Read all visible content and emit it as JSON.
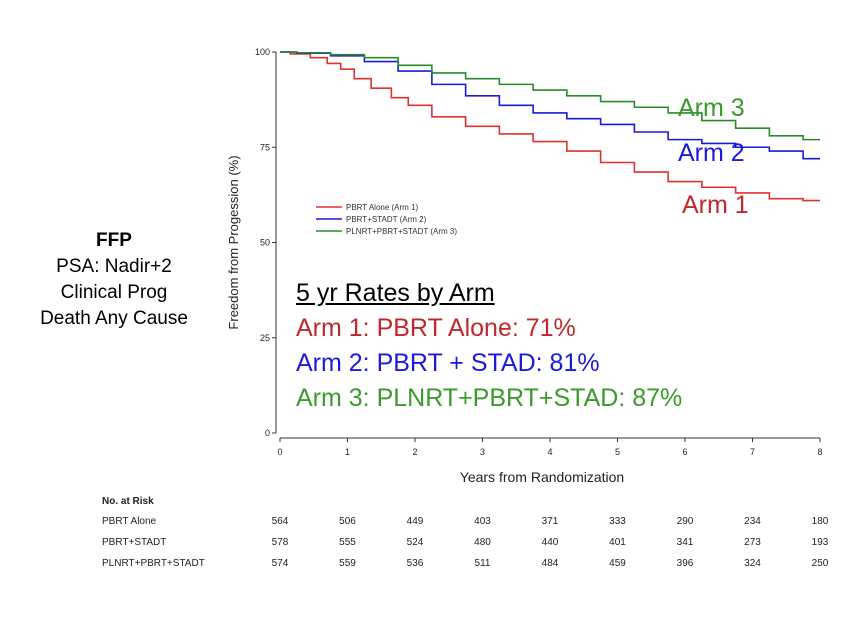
{
  "side_label": {
    "heading": "FFP",
    "lines": [
      "PSA: Nadir+2",
      "Clinical Prog",
      "Death Any Cause"
    ]
  },
  "rates": {
    "header": "5 yr Rates by Arm",
    "arm1": "Arm 1: PBRT Alone: 71%",
    "arm2": "Arm 2: PBRT + STAD: 81%",
    "arm3": "Arm 3: PLNRT+PBRT+STAD: 87%"
  },
  "arm_labels": {
    "arm1": "Arm 1",
    "arm2": "Arm 2",
    "arm3": "Arm 3"
  },
  "colors": {
    "arm1": "#c0282d",
    "arm2": "#1a1adb",
    "arm3": "#3a9a2a"
  },
  "chart_data": {
    "type": "line",
    "xlabel": "Years from Randomization",
    "ylabel": "Freedom from Progession (%)",
    "xlim": [
      0,
      8
    ],
    "ylim": [
      0,
      100
    ],
    "xticks": [
      0,
      1,
      2,
      3,
      4,
      5,
      6,
      7,
      8
    ],
    "yticks": [
      0,
      25,
      50,
      75,
      100
    ],
    "legend_position": "middle-left",
    "series": [
      {
        "name": "PBRT Alone (Arm 1)",
        "color": "#e03030",
        "x": [
          0,
          0.3,
          0.6,
          0.8,
          1.0,
          1.2,
          1.5,
          1.8,
          2.0,
          2.5,
          3.0,
          3.5,
          4.0,
          4.5,
          5.0,
          5.5,
          6.0,
          6.5,
          7.0,
          7.5,
          8.0
        ],
        "y": [
          100,
          99.5,
          98.5,
          97,
          95.5,
          93,
          90.5,
          88,
          86,
          83,
          80.5,
          78.5,
          76.5,
          74,
          71,
          68.5,
          66,
          64.5,
          63,
          61.5,
          61
        ]
      },
      {
        "name": "PBRT+STADT (Arm 2)",
        "color": "#1a1adb",
        "x": [
          0,
          0.5,
          1.0,
          1.5,
          2.0,
          2.5,
          3.0,
          3.5,
          4.0,
          4.5,
          5.0,
          5.5,
          6.0,
          6.5,
          7.0,
          7.5,
          8.0
        ],
        "y": [
          100,
          99.7,
          99,
          97.5,
          95,
          91.5,
          88.5,
          86,
          84,
          82.5,
          81,
          79,
          77,
          76,
          75,
          74,
          72
        ]
      },
      {
        "name": "PLNRT+PBRT+STADT (Arm 3)",
        "color": "#2a8a2a",
        "x": [
          0,
          0.5,
          1.0,
          1.5,
          2.0,
          2.5,
          3.0,
          3.5,
          4.0,
          4.5,
          5.0,
          5.5,
          6.0,
          6.5,
          7.0,
          7.5,
          8.0
        ],
        "y": [
          100,
          99.8,
          99.3,
          98.5,
          96.5,
          94.5,
          93,
          91.5,
          90,
          88.5,
          87,
          85.5,
          84,
          82,
          80,
          78,
          77
        ]
      }
    ],
    "risk_table": {
      "title": "No. at Risk",
      "rows": [
        {
          "label": "PBRT Alone",
          "values": [
            "564",
            "506",
            "449",
            "403",
            "371",
            "333",
            "290",
            "234",
            "180"
          ]
        },
        {
          "label": "PBRT+STADT",
          "values": [
            "578",
            "555",
            "524",
            "480",
            "440",
            "401",
            "341",
            "273",
            "193"
          ]
        },
        {
          "label": "PLNRT+PBRT+STADT",
          "values": [
            "574",
            "559",
            "536",
            "511",
            "484",
            "459",
            "396",
            "324",
            "250"
          ]
        }
      ]
    }
  }
}
